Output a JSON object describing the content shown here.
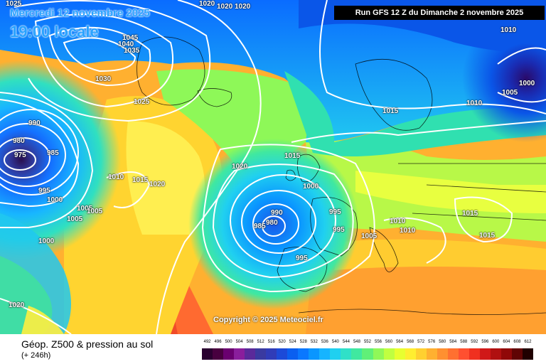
{
  "header": {
    "date": "Mercredi 12 novembre 2025",
    "time": "19:00 locale",
    "run": "Run GFS 12 Z du Dimanche 2 novembre 2025"
  },
  "copyright": "Copyright © 2025 Meteociel.fr",
  "legend": {
    "title": "Géop. Z500 & pression au sol",
    "subtitle": "(+ 246h)",
    "scale_values": [
      "492",
      "496",
      "500",
      "504",
      "508",
      "512",
      "516",
      "520",
      "524",
      "528",
      "532",
      "536",
      "540",
      "544",
      "548",
      "552",
      "556",
      "560",
      "564",
      "568",
      "572",
      "576",
      "580",
      "584",
      "588",
      "592",
      "596",
      "600",
      "604",
      "608",
      "612"
    ],
    "scale_colors": [
      "#2a0030",
      "#48003f",
      "#6a0070",
      "#8a1e9c",
      "#5a2a9a",
      "#3a3aa0",
      "#303cb8",
      "#1c4ad8",
      "#0a5ff0",
      "#0a78ff",
      "#0a96ff",
      "#16b4ff",
      "#20d0f0",
      "#30e0c8",
      "#40e8a0",
      "#60f078",
      "#90f858",
      "#c0ff40",
      "#e8ff30",
      "#ffee30",
      "#ffd030",
      "#ffb030",
      "#ff9030",
      "#ff7030",
      "#ff5030",
      "#f03020",
      "#d01818",
      "#b01010",
      "#900808",
      "#600404",
      "#200000"
    ]
  },
  "isobars": [
    {
      "label": "1025",
      "id": "1025-top-left"
    },
    {
      "label": "1020",
      "id": "1020-top-1"
    },
    {
      "label": "1020",
      "id": "1020-top-2"
    },
    {
      "label": "1020",
      "id": "1020-top-3"
    },
    {
      "label": "1045",
      "id": "1045"
    },
    {
      "label": "1040",
      "id": "1040"
    },
    {
      "label": "1035",
      "id": "1035"
    },
    {
      "label": "1030",
      "id": "1030"
    },
    {
      "label": "1025",
      "id": "1025-greenland"
    },
    {
      "label": "990",
      "id": "990-low-west"
    },
    {
      "label": "980",
      "id": "980"
    },
    {
      "label": "975",
      "id": "975"
    },
    {
      "label": "985",
      "id": "985-low-west"
    },
    {
      "label": "995",
      "id": "995-low-west"
    },
    {
      "label": "1000",
      "id": "1000-west"
    },
    {
      "label": "1010",
      "id": "1010-mid"
    },
    {
      "label": "1015",
      "id": "1015-mid"
    },
    {
      "label": "1020",
      "id": "1020-mid"
    },
    {
      "label": "1005",
      "id": "1005-a"
    },
    {
      "label": "1005",
      "id": "1005-b"
    },
    {
      "label": "1005",
      "id": "1005-c"
    },
    {
      "label": "1000",
      "id": "1000-sw"
    },
    {
      "label": "1020",
      "id": "1020-bottom-left"
    },
    {
      "label": "1020",
      "id": "1020-atlantic"
    },
    {
      "label": "1015",
      "id": "1015-biscay-n"
    },
    {
      "label": "1000",
      "id": "1000-biscay"
    },
    {
      "label": "990",
      "id": "990-biscay"
    },
    {
      "label": "985",
      "id": "985-biscay"
    },
    {
      "label": "980",
      "id": "980-biscay"
    },
    {
      "label": "995",
      "id": "995-france-1"
    },
    {
      "label": "995",
      "id": "995-france-2"
    },
    {
      "label": "995",
      "id": "995-iberia"
    },
    {
      "label": "1005",
      "id": "1005-alps"
    },
    {
      "label": "1010",
      "id": "1010-italy-1"
    },
    {
      "label": "1010",
      "id": "1010-italy-2"
    },
    {
      "label": "1015",
      "id": "1015-balkans"
    },
    {
      "label": "1015",
      "id": "1015-east"
    },
    {
      "label": "1015",
      "id": "1015-scand"
    },
    {
      "label": "1010",
      "id": "1010-ne-1"
    },
    {
      "label": "1010",
      "id": "1010-ne-2"
    },
    {
      "label": "1005",
      "id": "1005-ne"
    },
    {
      "label": "1000",
      "id": "1000-ne"
    }
  ]
}
